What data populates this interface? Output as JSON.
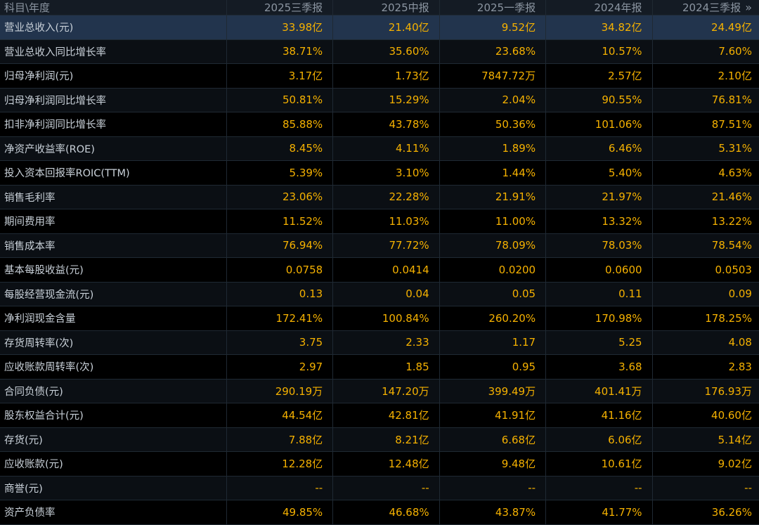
{
  "header": {
    "first": "科目\\年度",
    "periods": [
      "2025三季报",
      "2025中报",
      "2025一季报",
      "2024年报",
      "2024三季报"
    ],
    "more_icon": "»"
  },
  "rows": [
    {
      "label": "营业总收入(元)",
      "values": [
        "33.98亿",
        "21.40亿",
        "9.52亿",
        "34.82亿",
        "24.49亿"
      ]
    },
    {
      "label": "营业总收入同比增长率",
      "values": [
        "38.71%",
        "35.60%",
        "23.68%",
        "10.57%",
        "7.60%"
      ]
    },
    {
      "label": "归母净利润(元)",
      "values": [
        "3.17亿",
        "1.73亿",
        "7847.72万",
        "2.57亿",
        "2.10亿"
      ]
    },
    {
      "label": "归母净利润同比增长率",
      "values": [
        "50.81%",
        "15.29%",
        "2.04%",
        "90.55%",
        "76.81%"
      ]
    },
    {
      "label": "扣非净利润同比增长率",
      "values": [
        "85.88%",
        "43.78%",
        "50.36%",
        "101.06%",
        "87.51%"
      ]
    },
    {
      "label": "净资产收益率(ROE)",
      "values": [
        "8.45%",
        "4.11%",
        "1.89%",
        "6.46%",
        "5.31%"
      ]
    },
    {
      "label": "投入资本回报率ROIC(TTM)",
      "values": [
        "5.39%",
        "3.10%",
        "1.44%",
        "5.40%",
        "4.63%"
      ]
    },
    {
      "label": "销售毛利率",
      "values": [
        "23.06%",
        "22.28%",
        "21.91%",
        "21.97%",
        "21.46%"
      ]
    },
    {
      "label": "期间费用率",
      "values": [
        "11.52%",
        "11.03%",
        "11.00%",
        "13.32%",
        "13.22%"
      ]
    },
    {
      "label": "销售成本率",
      "values": [
        "76.94%",
        "77.72%",
        "78.09%",
        "78.03%",
        "78.54%"
      ]
    },
    {
      "label": "基本每股收益(元)",
      "values": [
        "0.0758",
        "0.0414",
        "0.0200",
        "0.0600",
        "0.0503"
      ]
    },
    {
      "label": "每股经营现金流(元)",
      "values": [
        "0.13",
        "0.04",
        "0.05",
        "0.11",
        "0.09"
      ]
    },
    {
      "label": "净利润现金含量",
      "values": [
        "172.41%",
        "100.84%",
        "260.20%",
        "170.98%",
        "178.25%"
      ]
    },
    {
      "label": "存货周转率(次)",
      "values": [
        "3.75",
        "2.33",
        "1.17",
        "5.25",
        "4.08"
      ]
    },
    {
      "label": "应收账款周转率(次)",
      "values": [
        "2.97",
        "1.85",
        "0.95",
        "3.68",
        "2.83"
      ]
    },
    {
      "label": "合同负债(元)",
      "values": [
        "290.19万",
        "147.20万",
        "399.49万",
        "401.41万",
        "176.93万"
      ]
    },
    {
      "label": "股东权益合计(元)",
      "values": [
        "44.54亿",
        "42.81亿",
        "41.91亿",
        "41.16亿",
        "40.60亿"
      ]
    },
    {
      "label": "存货(元)",
      "values": [
        "7.88亿",
        "8.21亿",
        "6.68亿",
        "6.06亿",
        "5.14亿"
      ]
    },
    {
      "label": "应收账款(元)",
      "values": [
        "12.28亿",
        "12.48亿",
        "9.48亿",
        "10.61亿",
        "9.02亿"
      ]
    },
    {
      "label": "商誉(元)",
      "values": [
        "--",
        "--",
        "--",
        "--",
        "--"
      ]
    },
    {
      "label": "资产负债率",
      "values": [
        "49.85%",
        "46.68%",
        "43.87%",
        "41.77%",
        "36.26%"
      ]
    }
  ]
}
